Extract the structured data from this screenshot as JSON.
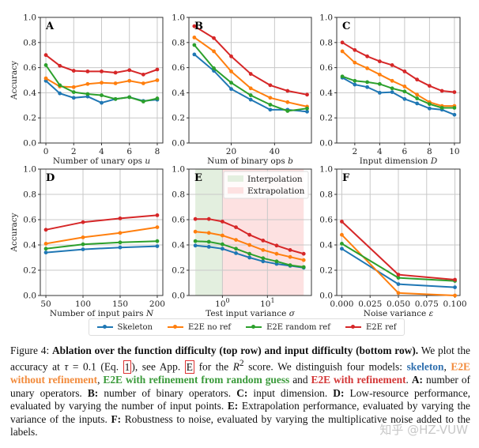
{
  "colors": {
    "skeleton": "#1f77b4",
    "e2e_no_ref": "#ff7f0e",
    "e2e_random_ref": "#2ca02c",
    "e2e_ref": "#d62728",
    "interp_shade": "#e3efdf",
    "extrap_shade": "#fde1e1"
  },
  "legend": [
    {
      "label": "Skeleton",
      "color": "#1f77b4"
    },
    {
      "label": "E2E no ref",
      "color": "#ff7f0e"
    },
    {
      "label": "E2E random ref",
      "color": "#2ca02c"
    },
    {
      "label": "E2E ref",
      "color": "#d62728"
    }
  ],
  "chart_data": [
    {
      "panel": "A",
      "type": "line",
      "xlabel": "Number of unary ops ",
      "xvar": "u",
      "ylabel": "Accuracy",
      "ylim": [
        0,
        1
      ],
      "xlim": [
        -0.4,
        8.4
      ],
      "grid": true,
      "xticks": [
        "0",
        "2",
        "4",
        "6",
        "8"
      ],
      "xtick_values": [
        0,
        2,
        4,
        6,
        8
      ],
      "yticks": [
        "0.0",
        "0.2",
        "0.4",
        "0.6",
        "0.8",
        "1.0"
      ],
      "x": [
        0,
        1,
        2,
        3,
        4,
        5,
        6,
        7,
        8
      ],
      "series": [
        {
          "name": "Skeleton",
          "values": [
            0.495,
            0.395,
            0.36,
            0.37,
            0.32,
            0.35,
            0.365,
            0.335,
            0.345
          ]
        },
        {
          "name": "E2E no ref",
          "values": [
            0.515,
            0.45,
            0.445,
            0.47,
            0.48,
            0.475,
            0.495,
            0.475,
            0.5
          ]
        },
        {
          "name": "E2E random ref",
          "values": [
            0.62,
            0.46,
            0.405,
            0.39,
            0.38,
            0.35,
            0.365,
            0.33,
            0.355
          ]
        },
        {
          "name": "E2E ref",
          "values": [
            0.7,
            0.615,
            0.575,
            0.57,
            0.57,
            0.56,
            0.58,
            0.545,
            0.585
          ]
        }
      ]
    },
    {
      "panel": "B",
      "type": "line",
      "xlabel": "Num of binary ops ",
      "xvar": "b",
      "ylabel": "",
      "ylim": [
        0,
        1
      ],
      "xlim": [
        0.5,
        57
      ],
      "grid": true,
      "xticks": [
        "20",
        "40"
      ],
      "xtick_values": [
        20,
        40
      ],
      "yticks": [
        "0.0",
        "0.2",
        "0.4",
        "0.6",
        "0.8",
        "1.0"
      ],
      "x": [
        3,
        12,
        20,
        29,
        38,
        46,
        55
      ],
      "series": [
        {
          "name": "Skeleton",
          "values": [
            0.705,
            0.575,
            0.43,
            0.345,
            0.265,
            0.265,
            0.25
          ]
        },
        {
          "name": "E2E no ref",
          "values": [
            0.84,
            0.73,
            0.57,
            0.435,
            0.36,
            0.325,
            0.29
          ]
        },
        {
          "name": "E2E random ref",
          "values": [
            0.78,
            0.595,
            0.48,
            0.38,
            0.305,
            0.255,
            0.275
          ]
        },
        {
          "name": "E2E ref",
          "values": [
            0.93,
            0.835,
            0.69,
            0.55,
            0.46,
            0.415,
            0.385
          ]
        }
      ]
    },
    {
      "panel": "C",
      "type": "line",
      "xlabel": "Input dimension ",
      "xvar": "D",
      "ylabel": "",
      "ylim": [
        0,
        1
      ],
      "xlim": [
        0.55,
        10.45
      ],
      "grid": true,
      "xticks": [
        "2",
        "4",
        "6",
        "8",
        "10"
      ],
      "xtick_values": [
        2,
        4,
        6,
        8,
        10
      ],
      "yticks": [
        "0.0",
        "0.2",
        "0.4",
        "0.6",
        "0.8",
        "1.0"
      ],
      "x": [
        1,
        2,
        3,
        4,
        5,
        6,
        7,
        8,
        9,
        10
      ],
      "series": [
        {
          "name": "Skeleton",
          "values": [
            0.52,
            0.465,
            0.445,
            0.4,
            0.405,
            0.35,
            0.315,
            0.275,
            0.265,
            0.225
          ]
        },
        {
          "name": "E2E no ref",
          "values": [
            0.73,
            0.64,
            0.595,
            0.545,
            0.495,
            0.45,
            0.385,
            0.325,
            0.295,
            0.295
          ]
        },
        {
          "name": "E2E random ref",
          "values": [
            0.53,
            0.495,
            0.485,
            0.47,
            0.435,
            0.41,
            0.355,
            0.31,
            0.28,
            0.28
          ]
        },
        {
          "name": "E2E ref",
          "values": [
            0.8,
            0.74,
            0.69,
            0.65,
            0.62,
            0.57,
            0.505,
            0.455,
            0.415,
            0.405
          ]
        }
      ]
    },
    {
      "panel": "D",
      "type": "line",
      "xlabel": "Number of input pairs ",
      "xvar": "N",
      "ylabel": "Accuracy",
      "ylim": [
        0,
        1
      ],
      "xlim": [
        42.5,
        207.5
      ],
      "grid": true,
      "xticks": [
        "50",
        "100",
        "150",
        "200"
      ],
      "xtick_values": [
        50,
        100,
        150,
        200
      ],
      "yticks": [
        "0.0",
        "0.2",
        "0.4",
        "0.6",
        "0.8",
        "1.0"
      ],
      "x": [
        50,
        100,
        150,
        200
      ],
      "series": [
        {
          "name": "Skeleton",
          "values": [
            0.34,
            0.365,
            0.38,
            0.39
          ]
        },
        {
          "name": "E2E no ref",
          "values": [
            0.41,
            0.46,
            0.495,
            0.54
          ]
        },
        {
          "name": "E2E random ref",
          "values": [
            0.37,
            0.405,
            0.42,
            0.43
          ]
        },
        {
          "name": "E2E ref",
          "values": [
            0.52,
            0.58,
            0.61,
            0.635
          ]
        }
      ]
    },
    {
      "panel": "E",
      "type": "line",
      "xscale": "log",
      "xlabel": "Test input variance ",
      "xvar": "σ",
      "ylabel": "",
      "ylim": [
        0,
        1
      ],
      "xlim": [
        0.18,
        95
      ],
      "grid": true,
      "xticks": [
        "10",
        "10"
      ],
      "xtick_exponents": [
        "0",
        "1"
      ],
      "xtick_values": [
        1,
        10
      ],
      "yticks": [
        "0.0",
        "0.2",
        "0.4",
        "0.6",
        "0.8",
        "1.0"
      ],
      "regions": [
        {
          "label": "Interpolation",
          "from": 0.25,
          "to": 1
        },
        {
          "label": "Extrapolation",
          "from": 1,
          "to": 64
        }
      ],
      "x": [
        0.25,
        0.5,
        1,
        2,
        4,
        8,
        16,
        32,
        64
      ],
      "series": [
        {
          "name": "Skeleton",
          "values": [
            0.395,
            0.385,
            0.37,
            0.335,
            0.3,
            0.27,
            0.25,
            0.235,
            0.22
          ]
        },
        {
          "name": "E2E no ref",
          "values": [
            0.505,
            0.495,
            0.475,
            0.44,
            0.4,
            0.36,
            0.33,
            0.305,
            0.28
          ]
        },
        {
          "name": "E2E random ref",
          "values": [
            0.43,
            0.425,
            0.405,
            0.37,
            0.33,
            0.295,
            0.27,
            0.24,
            0.225
          ]
        },
        {
          "name": "E2E ref",
          "values": [
            0.605,
            0.605,
            0.585,
            0.54,
            0.48,
            0.435,
            0.395,
            0.36,
            0.33
          ]
        }
      ]
    },
    {
      "panel": "F",
      "type": "line",
      "xlabel": "Noise variance ",
      "xvar": "ε",
      "ylabel": "",
      "ylim": [
        0,
        1
      ],
      "xlim": [
        -0.0045,
        0.1045
      ],
      "grid": true,
      "xticks": [
        "0.000",
        "0.025",
        "0.050",
        "0.075",
        "0.100"
      ],
      "xtick_values": [
        0,
        0.025,
        0.05,
        0.075,
        0.1
      ],
      "yticks": [
        "0.0",
        "0.2",
        "0.4",
        "0.6",
        "0.8",
        "1.0"
      ],
      "x": [
        0,
        0.05,
        0.1
      ],
      "series": [
        {
          "name": "Skeleton",
          "values": [
            0.37,
            0.09,
            0.065
          ]
        },
        {
          "name": "E2E no ref",
          "values": [
            0.48,
            0.02,
            0.0
          ]
        },
        {
          "name": "E2E random ref",
          "values": [
            0.41,
            0.14,
            0.115
          ]
        },
        {
          "name": "E2E ref",
          "values": [
            0.585,
            0.165,
            0.125
          ]
        }
      ]
    }
  ],
  "caption": {
    "segments": [
      {
        "text": "Figure 4: ",
        "style": ""
      },
      {
        "text": "Ablation over the function difficulty (top row) and input difficulty (bottom row).",
        "style": "b"
      },
      {
        "text": " We plot the accuracy at ",
        "style": ""
      },
      {
        "text": "τ",
        "style": "i"
      },
      {
        "text": " = 0.1 (Eq. ",
        "style": ""
      },
      {
        "text": "1",
        "style": "box"
      },
      {
        "text": "), see App. ",
        "style": ""
      },
      {
        "text": "E",
        "style": "box"
      },
      {
        "text": " for the ",
        "style": ""
      },
      {
        "text": "R",
        "style": "i"
      },
      {
        "text": "2",
        "style": "sup"
      },
      {
        "text": " score. We distinguish four models: ",
        "style": ""
      },
      {
        "text": "skeleton",
        "style": "b",
        "color": "#2f6fae"
      },
      {
        "text": ", ",
        "style": ""
      },
      {
        "text": "E2E without refinement",
        "style": "b",
        "color": "#f28a3a"
      },
      {
        "text": ", ",
        "style": ""
      },
      {
        "text": "E2E with refinement from random guess",
        "style": "b",
        "color": "#3a9a3a"
      },
      {
        "text": " and ",
        "style": ""
      },
      {
        "text": "E2E with refinement",
        "style": "b",
        "color": "#d33535"
      },
      {
        "text": ". ",
        "style": ""
      },
      {
        "text": "A:",
        "style": "b"
      },
      {
        "text": " number of unary operators. ",
        "style": ""
      },
      {
        "text": "B:",
        "style": "b"
      },
      {
        "text": " number of binary operators. ",
        "style": ""
      },
      {
        "text": "C:",
        "style": "b"
      },
      {
        "text": " input dimension. ",
        "style": ""
      },
      {
        "text": "D:",
        "style": "b"
      },
      {
        "text": " Low-resource performance, evaluated by varying the number of input points. ",
        "style": ""
      },
      {
        "text": "E:",
        "style": "b"
      },
      {
        "text": " Extrapolation performance, evaluated by varying the variance of the inputs. ",
        "style": ""
      },
      {
        "text": "F:",
        "style": "b"
      },
      {
        "text": " Robustness to noise, evaluated by varying the multiplicative noise added to the labels.",
        "style": ""
      }
    ]
  },
  "watermark": "知乎 @HZ-VUW"
}
